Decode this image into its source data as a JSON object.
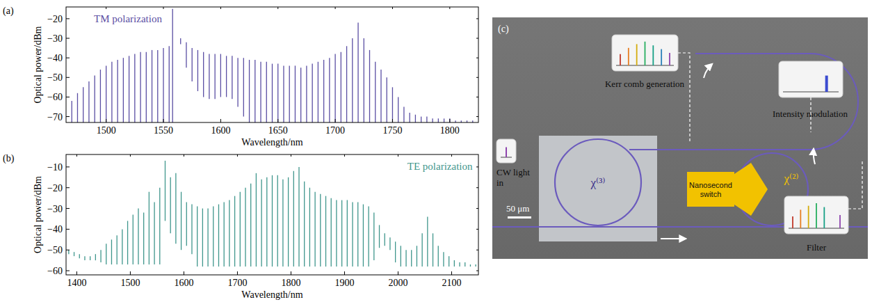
{
  "chart_data": [
    {
      "type": "spectrum",
      "panel": "(a)",
      "annotation": "TM polarization",
      "x_label": "Wavelength/nm",
      "y_label": "Optical power/dBm",
      "xlim": [
        1465,
        1825
      ],
      "ylim": [
        -73,
        -14
      ],
      "xticks": [
        1500,
        1550,
        1600,
        1650,
        1700,
        1750,
        1800
      ],
      "yticks": [
        {
          "value": -70,
          "label": "−70"
        },
        {
          "value": -60,
          "label": "−60"
        },
        {
          "value": -50,
          "label": "−50"
        },
        {
          "value": -40,
          "label": "−40"
        },
        {
          "value": -30,
          "label": "−30"
        },
        {
          "value": -20,
          "label": "−20"
        }
      ],
      "grid": false,
      "x": [
        1470,
        1475,
        1480,
        1485,
        1490,
        1495,
        1500,
        1505,
        1510,
        1515,
        1520,
        1525,
        1530,
        1535,
        1540,
        1545,
        1550,
        1555,
        1558,
        1565,
        1570,
        1575,
        1580,
        1585,
        1590,
        1595,
        1600,
        1605,
        1610,
        1615,
        1620,
        1625,
        1630,
        1635,
        1640,
        1645,
        1650,
        1655,
        1660,
        1665,
        1670,
        1675,
        1680,
        1685,
        1690,
        1695,
        1700,
        1705,
        1710,
        1715,
        1720,
        1725,
        1730,
        1735,
        1740,
        1745,
        1750,
        1755,
        1760,
        1765,
        1770,
        1775,
        1780,
        1785,
        1790,
        1795,
        1800,
        1805,
        1810,
        1815,
        1820
      ],
      "series": [
        {
          "color": "#5a4ea3",
          "values": [
            -62,
            -58,
            -55,
            -52,
            -49,
            -46,
            -44,
            -42,
            -41,
            -40,
            -39,
            -38,
            -37,
            -37,
            -36,
            -36,
            -35,
            -34,
            -15,
            -30,
            -32,
            -35,
            -36,
            -37,
            -38,
            -38,
            -38,
            -39,
            -39,
            -40,
            -40,
            -41,
            -41,
            -42,
            -42,
            -43,
            -43,
            -44,
            -44,
            -44,
            -45,
            -44,
            -43,
            -42,
            -41,
            -40,
            -38,
            -37,
            -34,
            -30,
            -22,
            -30,
            -36,
            -42,
            -46,
            -50,
            -55,
            -60,
            -65,
            -68,
            -69,
            -70,
            -70,
            -71,
            -71,
            -71,
            -71,
            -72,
            -72,
            -72,
            -72
          ],
          "floor": [
            -73,
            -73,
            -73,
            -73,
            -73,
            -73,
            -73,
            -73,
            -73,
            -73,
            -73,
            -73,
            -73,
            -73,
            -73,
            -73,
            -73,
            -73,
            -73,
            -33,
            -45,
            -52,
            -57,
            -60,
            -61,
            -61,
            -60,
            -60,
            -61,
            -65,
            -70,
            -73,
            -73,
            -73,
            -73,
            -73,
            -73,
            -73,
            -73,
            -73,
            -73,
            -73,
            -73,
            -73,
            -73,
            -73,
            -73,
            -73,
            -73,
            -73,
            -73,
            -73,
            -73,
            -73,
            -73,
            -73,
            -73,
            -73,
            -73,
            -73,
            -73,
            -73,
            -73,
            -73,
            -73,
            -73,
            -73,
            -73,
            -73,
            -73,
            -73
          ]
        }
      ]
    },
    {
      "type": "spectrum",
      "panel": "(b)",
      "annotation": "TE polarization",
      "x_label": "Wavelength/nm",
      "y_label": "Optical power/dBm",
      "xlim": [
        1380,
        2150
      ],
      "ylim": [
        -62,
        -4
      ],
      "xticks": [
        1400,
        1500,
        1600,
        1700,
        1800,
        1900,
        2000,
        2100
      ],
      "yticks": [
        {
          "value": -60,
          "label": "−60"
        },
        {
          "value": -50,
          "label": "−50"
        },
        {
          "value": -40,
          "label": "−40"
        },
        {
          "value": -30,
          "label": "−30"
        },
        {
          "value": -20,
          "label": "−20"
        },
        {
          "value": -10,
          "label": "−10"
        }
      ],
      "grid": false,
      "x": [
        1385,
        1395,
        1405,
        1415,
        1425,
        1435,
        1445,
        1455,
        1465,
        1475,
        1485,
        1495,
        1505,
        1515,
        1525,
        1535,
        1545,
        1555,
        1565,
        1575,
        1585,
        1595,
        1605,
        1615,
        1625,
        1635,
        1645,
        1655,
        1665,
        1675,
        1685,
        1695,
        1705,
        1715,
        1725,
        1735,
        1745,
        1755,
        1765,
        1775,
        1785,
        1795,
        1805,
        1815,
        1825,
        1835,
        1845,
        1855,
        1865,
        1875,
        1885,
        1895,
        1905,
        1915,
        1925,
        1935,
        1945,
        1955,
        1965,
        1975,
        1985,
        1995,
        2005,
        2015,
        2025,
        2035,
        2045,
        2055,
        2065,
        2075,
        2085,
        2095,
        2105,
        2115,
        2125,
        2135,
        2145
      ],
      "series": [
        {
          "color": "#3f968c",
          "values": [
            -50,
            -51,
            -52,
            -53,
            -53,
            -52,
            -50,
            -47,
            -45,
            -43,
            -40,
            -36,
            -33,
            -30,
            -32,
            -22,
            -27,
            -20,
            -7,
            -15,
            -13,
            -22,
            -27,
            -28,
            -29,
            -30,
            -30,
            -29,
            -28,
            -27,
            -26,
            -24,
            -22,
            -20,
            -18,
            -13,
            -16,
            -15,
            -14,
            -14,
            -16,
            -15,
            -12,
            -10,
            -17,
            -20,
            -22,
            -23,
            -24,
            -25,
            -26,
            -26,
            -26,
            -27,
            -27,
            -28,
            -29,
            -32,
            -38,
            -42,
            -44,
            -46,
            -48,
            -50,
            -50,
            -48,
            -42,
            -34,
            -42,
            -48,
            -51,
            -53,
            -55,
            -56,
            -56,
            -57,
            -57
          ],
          "floor": [
            -52,
            -53,
            -54,
            -55,
            -55,
            -55,
            -56,
            -57,
            -57,
            -57,
            -57,
            -57,
            -57,
            -57,
            -57,
            -57,
            -57,
            -57,
            -36,
            -42,
            -47,
            -50,
            -48,
            -52,
            -58,
            -58,
            -58,
            -58,
            -58,
            -58,
            -58,
            -58,
            -58,
            -58,
            -58,
            -58,
            -58,
            -58,
            -58,
            -58,
            -58,
            -58,
            -58,
            -58,
            -58,
            -58,
            -58,
            -58,
            -58,
            -58,
            -58,
            -58,
            -58,
            -58,
            -58,
            -58,
            -58,
            -55,
            -49,
            -48,
            -50,
            -56,
            -58,
            -58,
            -58,
            -58,
            -58,
            -58,
            -58,
            -58,
            -58,
            -58,
            -58,
            -58,
            -58,
            -58,
            -58
          ]
        }
      ]
    }
  ],
  "diagram": {
    "label": "(c)",
    "input": "CW light in",
    "scale_bar": "50 μm",
    "stages": [
      "Kerr comb generation",
      "Intensity modulation",
      "Filter"
    ],
    "switch": "Nanosecond switch",
    "rings": [
      "χ⁽³⁾",
      "χ⁽²⁾"
    ]
  }
}
